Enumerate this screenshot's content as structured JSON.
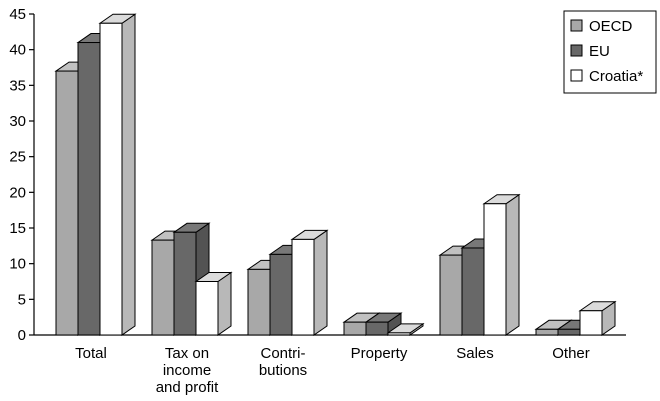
{
  "chart_data": {
    "type": "bar",
    "style": "3d-clustered",
    "categories": [
      [
        "Total"
      ],
      [
        "Tax on",
        "income",
        "and profit"
      ],
      [
        "Contri-",
        "butions"
      ],
      [
        "Property"
      ],
      [
        "Sales"
      ],
      [
        "Other"
      ]
    ],
    "series": [
      {
        "name": "OECD",
        "color": "#a8a8a8",
        "values": [
          37,
          13.3,
          9.2,
          1.8,
          11.2,
          0.8
        ]
      },
      {
        "name": "EU",
        "color": "#686868",
        "values": [
          41,
          14.4,
          11.3,
          1.8,
          12.2,
          0.8
        ]
      },
      {
        "name": "Croatia*",
        "color": "#ffffff",
        "values": [
          43.7,
          7.5,
          13.4,
          0.3,
          18.4,
          3.4
        ]
      }
    ],
    "ylim": [
      0,
      45
    ],
    "yticks": [
      "0",
      "5",
      "10",
      "15",
      "20",
      "25",
      "30",
      "35",
      "40",
      "45"
    ],
    "grid": false,
    "legend_position": "top-right"
  }
}
